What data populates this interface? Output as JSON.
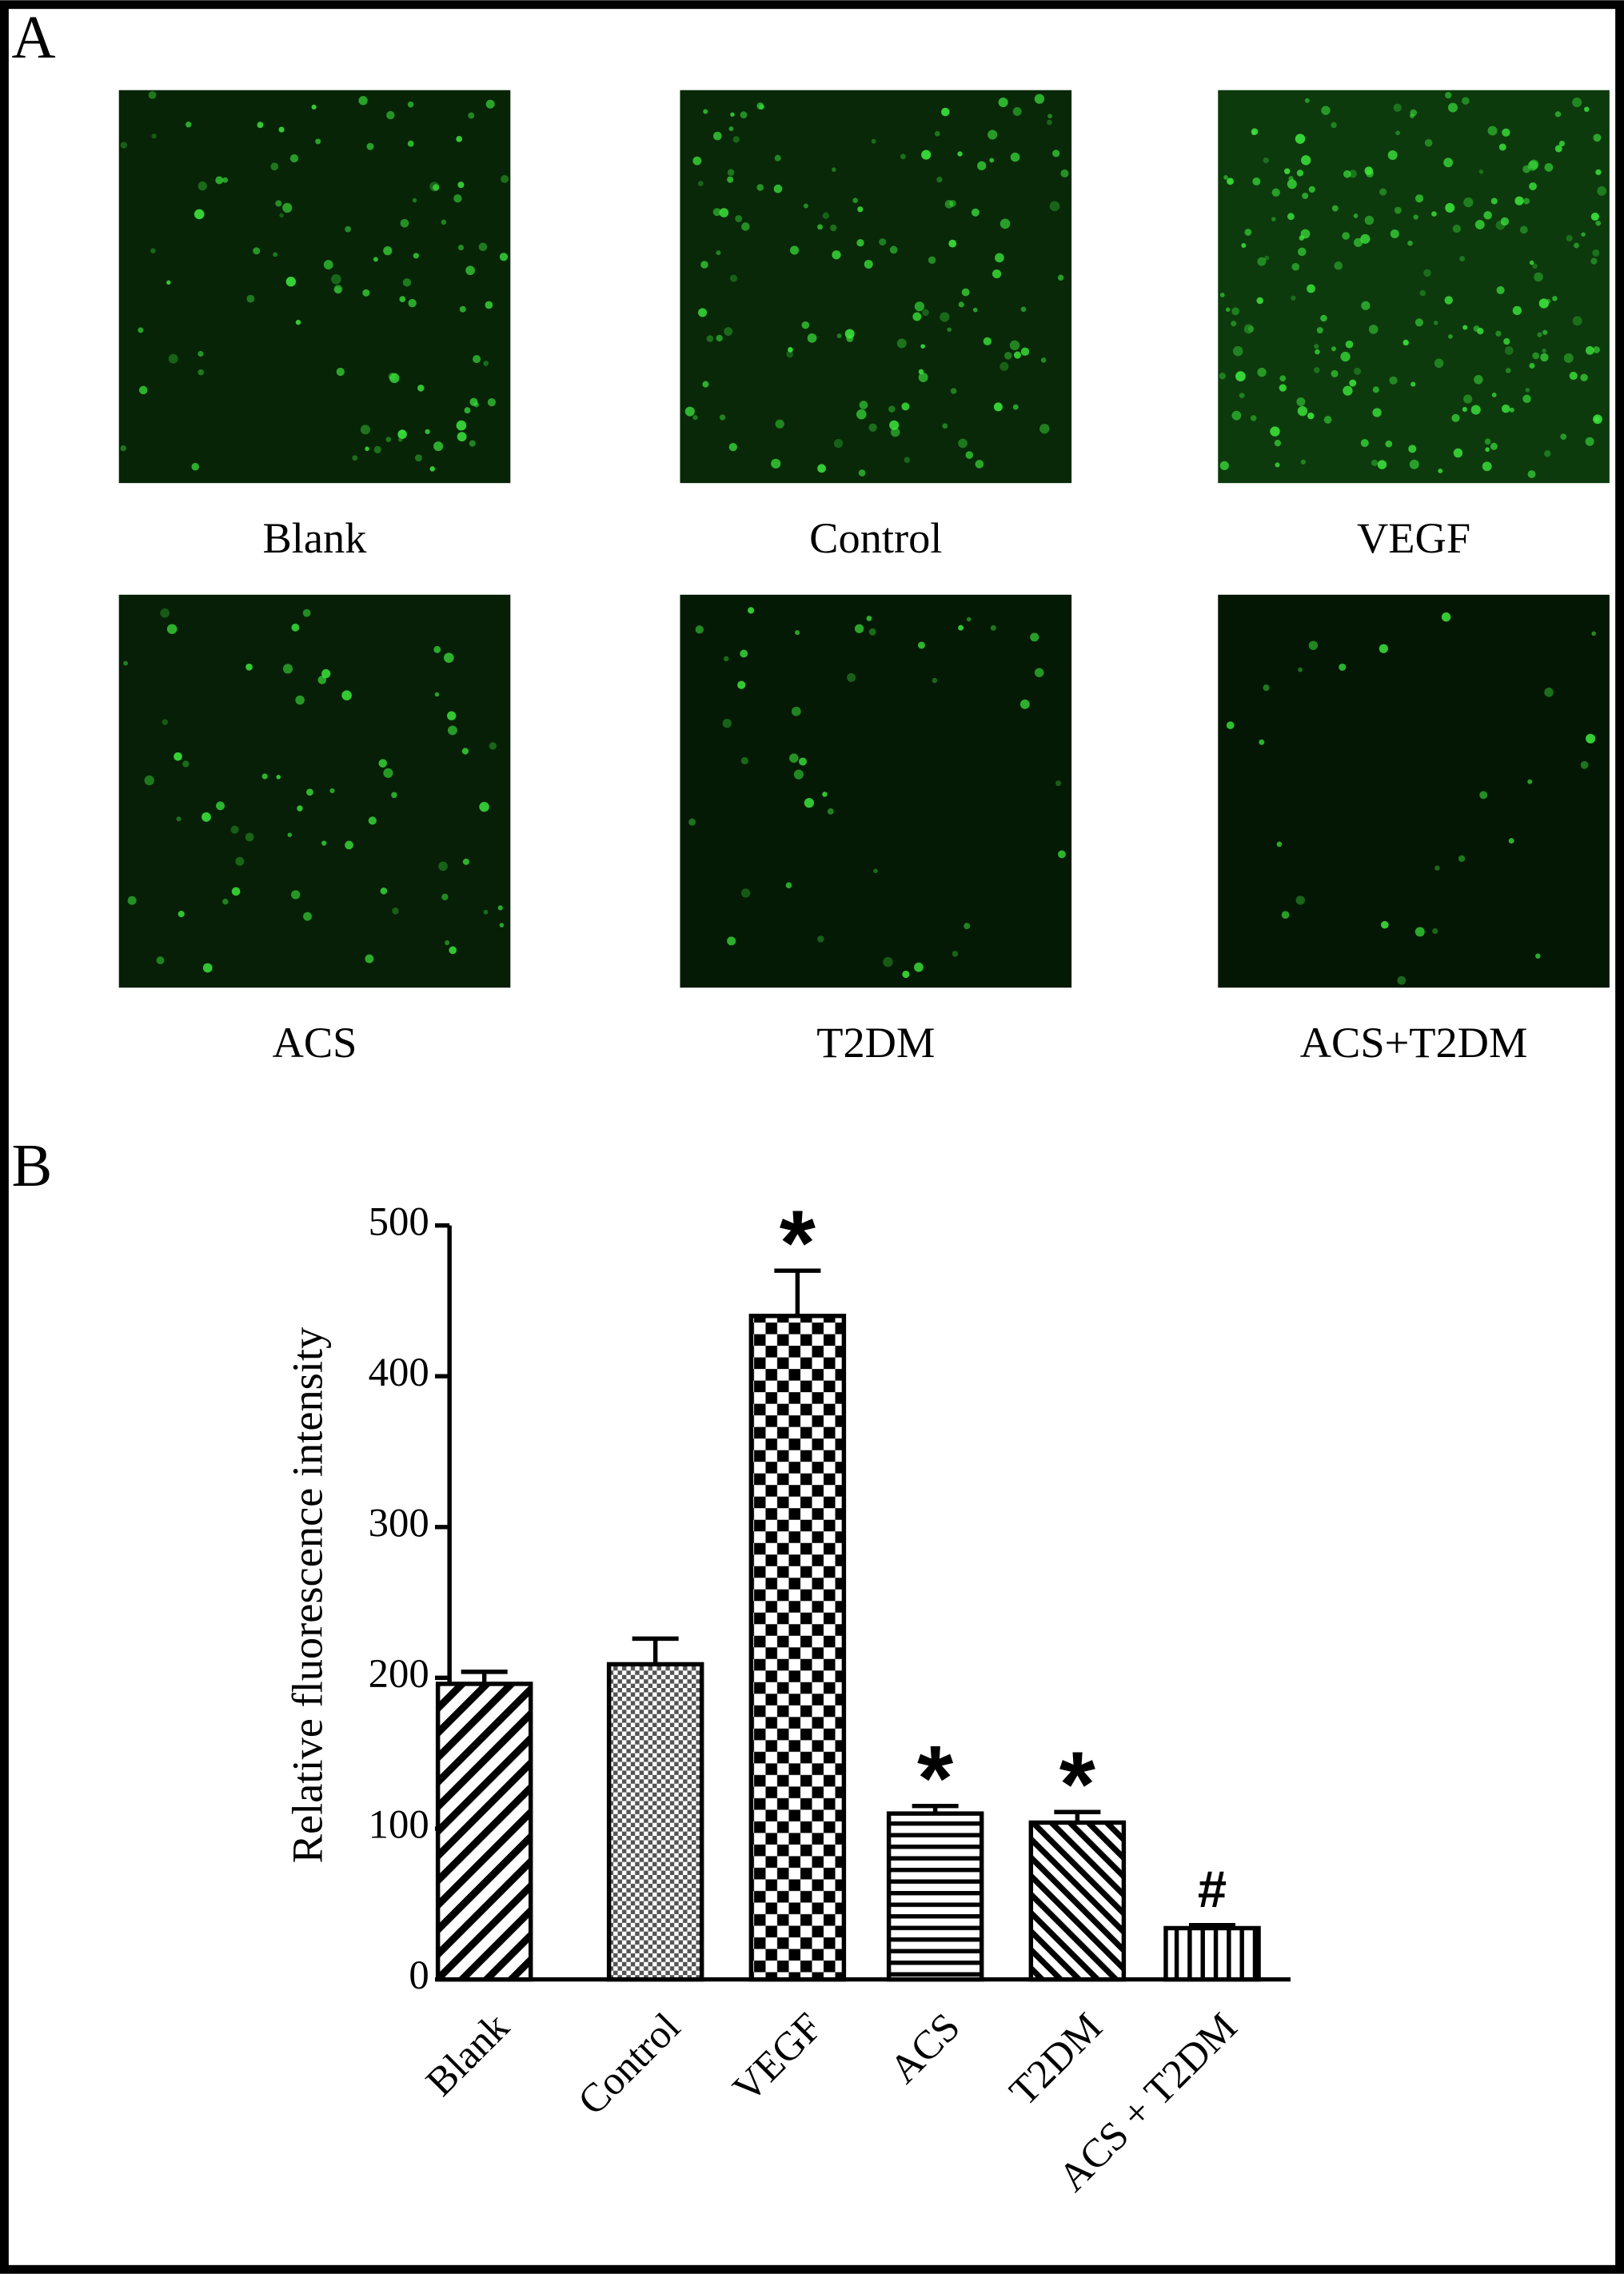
{
  "panel_a": {
    "label": "A",
    "images": [
      {
        "label": "Blank"
      },
      {
        "label": "Control"
      },
      {
        "label": "VEGF"
      },
      {
        "label": "ACS"
      },
      {
        "label": "T2DM"
      },
      {
        "label": "ACS+T2DM"
      }
    ]
  },
  "chart_data": {
    "type": "bar",
    "panel_label": "B",
    "ylabel": "Relative fluorescence intensity",
    "categories": [
      "Blank",
      "Control",
      "VEGF",
      "ACS",
      "T2DM",
      "ACS + T2DM"
    ],
    "values": [
      196,
      209,
      440,
      110,
      104,
      34
    ],
    "errors": [
      8,
      17,
      30,
      5,
      7,
      2
    ],
    "annotations": [
      null,
      null,
      "*",
      "*",
      "*",
      "#"
    ],
    "ylim": [
      0,
      500
    ],
    "yticks": [
      0,
      100,
      200,
      300,
      400,
      500
    ]
  }
}
